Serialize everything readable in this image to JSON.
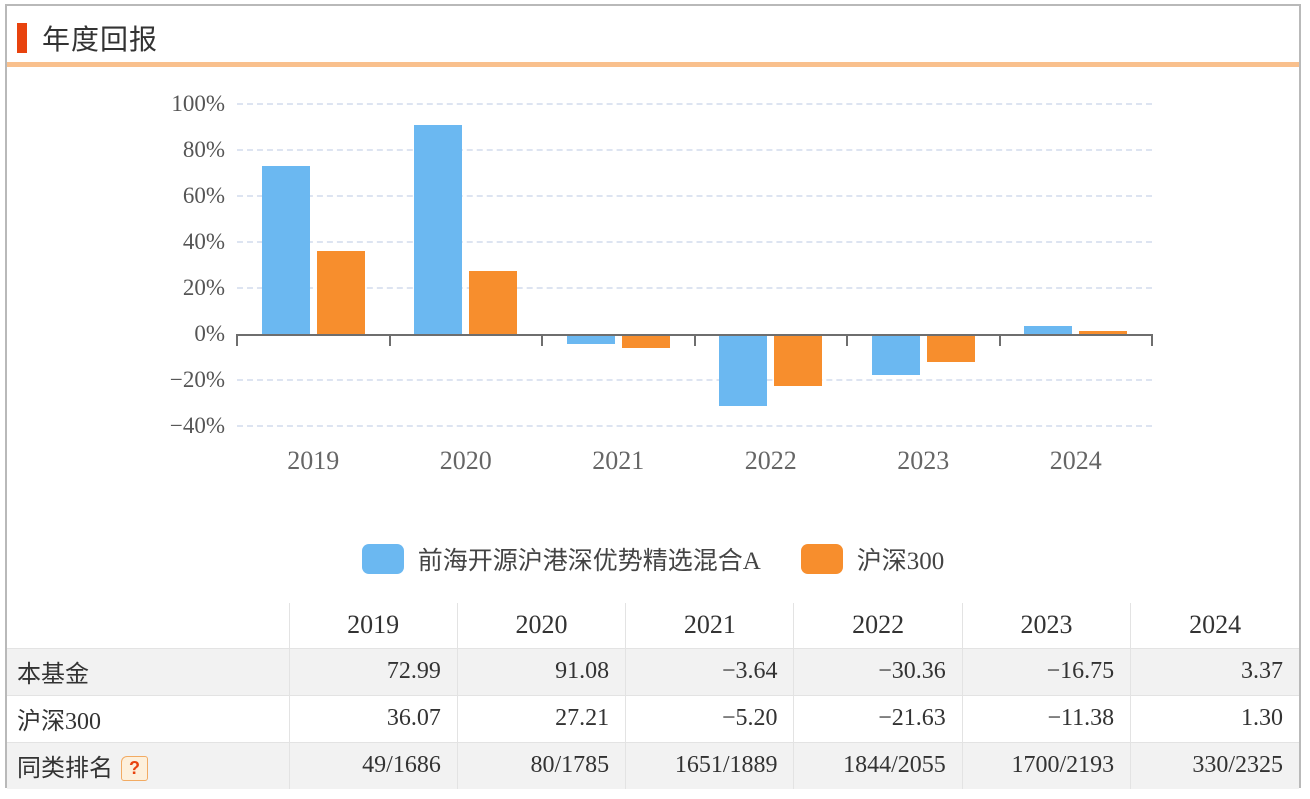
{
  "header": {
    "title": "年度回报"
  },
  "colors": {
    "accent": "#e8430e",
    "header_underline": "#f9c08d",
    "fund_blue": "#6bb8f1",
    "index_orange": "#f78e2d",
    "axis": "#6e6e6e",
    "gridline": "#dde4f1",
    "row_alt_bg": "#f2f2f2",
    "page_border": "#b9b9b9"
  },
  "chart_data": {
    "type": "bar",
    "title": "年度回报",
    "categories": [
      "2019",
      "2020",
      "2021",
      "2022",
      "2023",
      "2024"
    ],
    "series": [
      {
        "name": "前海开源沪港深优势精选混合A",
        "color": "#6bb8f1",
        "values": [
          72.99,
          91.08,
          -3.64,
          -30.36,
          -16.75,
          3.37
        ]
      },
      {
        "name": "沪深300",
        "color": "#f78e2d",
        "values": [
          36.07,
          27.21,
          -5.2,
          -21.63,
          -11.38,
          1.3
        ]
      }
    ],
    "ylim": [
      -40,
      100
    ],
    "ytick_step": 20,
    "yticks": [
      {
        "value": 100,
        "label": "100%"
      },
      {
        "value": 80,
        "label": "80%"
      },
      {
        "value": 60,
        "label": "60%"
      },
      {
        "value": 40,
        "label": "40%"
      },
      {
        "value": 20,
        "label": "20%"
      },
      {
        "value": 0,
        "label": "0%"
      },
      {
        "value": -20,
        "label": "−20%"
      },
      {
        "value": -40,
        "label": "−40%"
      }
    ],
    "grid": "horizontal-dashed",
    "legend_position": "bottom"
  },
  "legend": {
    "items": [
      {
        "label": "前海开源沪港深优势精选混合A",
        "color": "#6bb8f1"
      },
      {
        "label": "沪深300",
        "color": "#f78e2d"
      }
    ]
  },
  "table": {
    "columns": [
      "",
      "2019",
      "2020",
      "2021",
      "2022",
      "2023",
      "2024"
    ],
    "rows": [
      {
        "label": "本基金",
        "values": [
          "72.99",
          "91.08",
          "−3.64",
          "−30.36",
          "−16.75",
          "3.37"
        ]
      },
      {
        "label": "沪深300",
        "values": [
          "36.07",
          "27.21",
          "−5.20",
          "−21.63",
          "−11.38",
          "1.30"
        ]
      },
      {
        "label": "同类排名",
        "help_icon": "?",
        "values": [
          "49/1686",
          "80/1785",
          "1651/1889",
          "1844/2055",
          "1700/2193",
          "330/2325"
        ]
      }
    ]
  }
}
